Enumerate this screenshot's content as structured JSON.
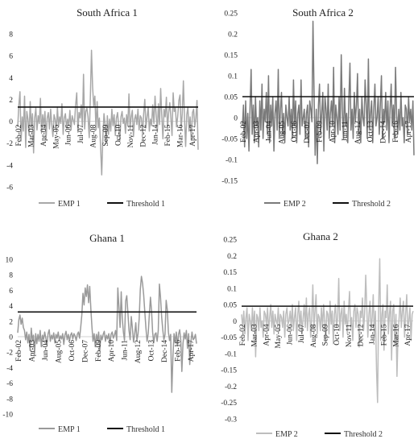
{
  "chart_data": [
    {
      "type": "line",
      "title": "South Africa 1",
      "ylim": [
        -6,
        8
      ],
      "yticks": [
        "8",
        "6",
        "4",
        "2",
        "0",
        "-2",
        "-4",
        "-6"
      ],
      "x_tick_labels": [
        "Feb-02",
        "Mar-03",
        "Apr-04",
        "May-05",
        "Jun-06",
        "Jul-07",
        "Aug-08",
        "Sep-09",
        "Oct-10",
        "Nov-11",
        "Dec-12",
        "Jan-14",
        "Feb-15",
        "Mar-16",
        "Apr-17"
      ],
      "series": [
        {
          "name": "EMP 1",
          "color": "#a8a8a8",
          "values": [
            -0.5,
            1.5,
            2.7,
            -1.8,
            0.4,
            -0.9,
            2.3,
            -2.4,
            0.9,
            0.2,
            -1.3,
            1.8,
            -0.6,
            0.7,
            -2.9,
            0.3,
            1.2,
            -0.8,
            0.5,
            -0.2,
            2.1,
            -1.1,
            0.6,
            -0.4,
            0.9,
            -1.6,
            0.3,
            0.8,
            -0.7,
            1.1,
            -0.3,
            -1.4,
            0.6,
            0.2,
            -0.9,
            1.3,
            -0.5,
            0.4,
            -0.2,
            1.6,
            -1.2,
            0.3,
            0.7,
            -0.6,
            0.2,
            -0.4,
            1.0,
            -0.8,
            0.5,
            0.1,
            -0.3,
            1.4,
            2.6,
            -1.0,
            0.8,
            0.3,
            1.5,
            -0.5,
            4.3,
            -0.7,
            0.9,
            1.2,
            0.4,
            -1.5,
            2.2,
            6.5,
            3.1,
            1.4,
            2.3,
            -0.8,
            1.8,
            -0.6,
            0.3,
            -2.2,
            -4.9,
            -1.5,
            0.7,
            -0.3,
            -2.0,
            0.5,
            -1.2,
            0.2,
            -0.9,
            1.1,
            -0.4,
            0.6,
            -1.3,
            0.3,
            0.8,
            -0.5,
            -1.8,
            0.4,
            0.9,
            -0.2,
            0.3,
            -1.1,
            0.6,
            -0.4,
            2.5,
            -0.7,
            0.4,
            1.0,
            -1.4,
            0.2,
            0.6,
            -0.3,
            1.1,
            -0.8,
            0.5,
            0.3,
            -1.2,
            0.7,
            2.0,
            -0.6,
            0.4,
            1.3,
            -0.9,
            0.2,
            -0.4,
            1.5,
            -0.2,
            2.3,
            0.6,
            -1.0,
            1.6,
            -0.3,
            3.0,
            0.5,
            -1.6,
            1.1,
            0.4,
            2.2,
            -0.7,
            0.8,
            1.7,
            0.3,
            -1.3,
            2.6,
            0.9,
            1.2,
            -0.5,
            0.4,
            1.9,
            2.4,
            -0.8,
            0.7,
            3.7,
            0.2,
            -2.3,
            0.6,
            1.3,
            -0.9,
            0.4,
            -1.7,
            0.8,
            1.1,
            -0.5,
            0.3,
            1.9,
            -2.6
          ]
        },
        {
          "name": "Threshold 1",
          "color": "#111111",
          "values": [
            1.3
          ]
        }
      ]
    },
    {
      "type": "line",
      "title": "South Africa 2",
      "ylim": [
        -0.15,
        0.25
      ],
      "yticks": [
        "0.25",
        "0.2",
        "0.15",
        "0.1",
        "0.05",
        "0",
        "-0.05",
        "-0.1",
        "-0.15"
      ],
      "x_tick_labels": [
        "Feb-02",
        "Apr-03",
        "Jun-04",
        "Aug-05",
        "Oct-06",
        "Dec-07",
        "Feb-09",
        "Apr-10",
        "Jun-11",
        "Aug-12",
        "Oct-13",
        "Dec-14",
        "Feb-16",
        "Apr-17"
      ],
      "series": [
        {
          "name": "EMP 2",
          "color": "#7a7a7a",
          "values": [
            -0.02,
            0.03,
            -0.07,
            0.04,
            -0.05,
            0.01,
            -0.08,
            0.02,
            0.115,
            -0.04,
            0.03,
            -0.06,
            0.05,
            -0.02,
            0.0,
            -0.07,
            0.04,
            -0.03,
            0.08,
            -0.05,
            0.02,
            -0.01,
            0.06,
            -0.04,
            0.1,
            -0.06,
            0.03,
            -0.02,
            0.05,
            -0.08,
            0.01,
            0.04,
            -0.03,
            0.115,
            -0.05,
            0.02,
            0.06,
            -0.04,
            0.01,
            -0.06,
            0.03,
            0.0,
            -0.02,
            0.05,
            -0.03,
            0.02,
            -0.05,
            0.09,
            -0.02,
            0.04,
            -0.06,
            0.01,
            0.03,
            -0.04,
            0.09,
            -0.02,
            0.0,
            0.02,
            -0.05,
            0.01,
            0.03,
            -0.07,
            0.04,
            0.02,
            -0.01,
            0.23,
            0.05,
            -0.09,
            0.02,
            -0.11,
            0.03,
            0.08,
            -0.04,
            0.01,
            0.06,
            -0.08,
            0.05,
            0.02,
            -0.03,
            0.08,
            -0.05,
            0.01,
            0.04,
            -0.02,
            0.12,
            -0.06,
            0.03,
            0.0,
            -0.04,
            0.05,
            -0.03,
            0.15,
            0.02,
            -0.05,
            0.07,
            -0.02,
            0.01,
            -0.06,
            0.04,
            0.13,
            -0.03,
            0.02,
            -0.05,
            0.06,
            -0.01,
            0.03,
            0.105,
            -0.04,
            0.02,
            -0.06,
            0.05,
            0.0,
            -0.02,
            0.09,
            0.03,
            -0.05,
            0.14,
            -0.03,
            0.01,
            0.04,
            -0.06,
            0.02,
            0.08,
            -0.02,
            0.0,
            0.05,
            -0.04,
            0.03,
            0.1,
            -0.05,
            0.02,
            -0.01,
            0.06,
            -0.03,
            0.04,
            -0.06,
            0.02,
            0.08,
            -0.02,
            0.03,
            -0.05,
            0.12,
            0.01,
            -0.04,
            0.02,
            -0.03,
            0.06,
            -0.02,
            0.0,
            -0.06,
            0.03,
            0.02,
            -0.04,
            0.05,
            -0.01,
            0.02,
            -0.03,
            0.04,
            -0.09
          ]
        },
        {
          "name": "Threshold 2",
          "color": "#111111",
          "values": [
            0.05
          ]
        }
      ]
    },
    {
      "type": "line",
      "title": "Ghana 1",
      "ylim": [
        -10,
        10
      ],
      "yticks": [
        "10",
        "8",
        "6",
        "4",
        "2",
        "0",
        "-2",
        "-4",
        "-6",
        "-8",
        "-10"
      ],
      "x_tick_labels": [
        "Feb-02",
        "Apr-03",
        "Jun-04",
        "Aug-05",
        "Oct-06",
        "Dec-07",
        "Feb-09",
        "Apr-10",
        "Jun-11",
        "Aug-12",
        "Oct-13",
        "Dec-14",
        "Feb-16",
        "Apr-17"
      ],
      "series": [
        {
          "name": "EMP 1",
          "color": "#9a9a9a",
          "values": [
            0.5,
            2.2,
            2.8,
            1.6,
            2.4,
            1.2,
            0.8,
            -0.4,
            0.6,
            -0.8,
            0.3,
            -1.8,
            1.1,
            -0.5,
            0.2,
            -2.2,
            0.4,
            -0.9,
            0.3,
            -0.6,
            0.8,
            -1.3,
            0.2,
            -0.4,
            0.6,
            -0.2,
            -1.1,
            0.4,
            0.9,
            -0.6,
            0.2,
            -0.3,
            0.5,
            -0.8,
            0.3,
            -0.2,
            0.6,
            -0.5,
            0.1,
            -0.3,
            0.4,
            -1.0,
            0.2,
            0.7,
            -0.4,
            0.3,
            -0.6,
            0.2,
            0.5,
            -0.3,
            0.4,
            0.1,
            -0.5,
            0.3,
            0.6,
            -0.2,
            1.2,
            2.8,
            5.6,
            4.1,
            6.3,
            5.2,
            6.7,
            4.4,
            6.5,
            3.6,
            1.2,
            -0.6,
            0.4,
            -1.3,
            0.3,
            -0.5,
            0.6,
            -1.8,
            0.2,
            -0.4,
            0.3,
            0.7,
            -0.6,
            0.2,
            -0.3,
            0.4,
            -1.0,
            0.3,
            0.6,
            -0.2,
            0.2,
            0.8,
            -0.5,
            6.3,
            3.8,
            1.2,
            5.8,
            2.4,
            0.6,
            -0.5,
            4.6,
            5.3,
            3.1,
            0.8,
            -0.4,
            2.6,
            1.1,
            -0.7,
            0.3,
            1.8,
            -0.5,
            0.4,
            2.3,
            6.1,
            7.8,
            6.9,
            5.4,
            3.2,
            1.1,
            -0.6,
            0.4,
            2.8,
            5.1,
            3.3,
            0.6,
            -0.8,
            0.3,
            0.5,
            -0.6,
            0.8,
            6.8,
            5.1,
            2.6,
            0.9,
            -0.4,
            0.3,
            4.7,
            3.5,
            0.6,
            -0.5,
            0.3,
            -7.2,
            -2.6,
            0.4,
            -0.8,
            0.6,
            -1.2,
            0.3,
            0.9,
            -0.5,
            -4.5,
            -0.9,
            0.5,
            -0.3,
            0.8,
            -1.5,
            0.4,
            -3.6,
            -0.7,
            0.6,
            -0.4,
            -0.2,
            0.3,
            -0.9
          ]
        },
        {
          "name": "Threshold 1",
          "color": "#111111",
          "values": [
            3.2
          ]
        }
      ]
    },
    {
      "type": "line",
      "title": "Ghana 2",
      "ylim": [
        -0.3,
        0.25
      ],
      "yticks": [
        "0.25",
        "0.2",
        "0.15",
        "0.1",
        "0.05",
        "0",
        "-0.05",
        "-0.1",
        "-0.15",
        "-0.2",
        "-0.25",
        "-0.3"
      ],
      "x_tick_labels": [
        "Feb-02",
        "Mar-03",
        "Apr-04",
        "May-05",
        "Jun-06",
        "Jul-07",
        "Aug-08",
        "Sep-09",
        "Oct-10",
        "Nov-11",
        "Dec-12",
        "Jan-14",
        "Feb-15",
        "Mar-16",
        "Apr-17"
      ],
      "series": [
        {
          "name": "EMP 2",
          "color": "#bdbdbd",
          "values": [
            0.02,
            -0.02,
            0.03,
            -0.04,
            0.01,
            0.04,
            -0.06,
            0.02,
            0.0,
            -0.03,
            0.04,
            -0.02,
            0.03,
            -0.11,
            0.02,
            0.01,
            -0.03,
            0.04,
            -0.02,
            0.0,
            -0.05,
            0.03,
            0.02,
            -0.01,
            0.04,
            -0.03,
            0.01,
            0.05,
            -0.02,
            0.03,
            -0.04,
            0.02,
            0.0,
            -0.01,
            0.04,
            -0.03,
            0.02,
            0.01,
            -0.02,
            0.03,
            -0.05,
            0.02,
            0.04,
            -0.01,
            0.0,
            0.03,
            -0.02,
            0.05,
            -0.03,
            0.01,
            0.04,
            -0.06,
            0.02,
            0.06,
            -0.02,
            0.03,
            -0.04,
            0.01,
            0.05,
            -0.02,
            0.07,
            -0.03,
            0.02,
            0.04,
            -0.05,
            0.01,
            0.11,
            -0.02,
            0.03,
            0.08,
            -0.04,
            0.02,
            0.01,
            -0.03,
            0.04,
            -0.02,
            0.05,
            0.0,
            -0.06,
            0.03,
            0.02,
            -0.04,
            0.06,
            -0.01,
            0.03,
            -0.07,
            0.02,
            0.05,
            -0.02,
            0.01,
            0.13,
            -0.03,
            0.02,
            0.04,
            -0.05,
            0.06,
            -0.01,
            0.02,
            -0.04,
            0.03,
            0.09,
            -0.02,
            0.01,
            -0.06,
            0.03,
            0.05,
            -0.02,
            0.04,
            0.02,
            -0.08,
            0.03,
            0.01,
            0.07,
            -0.03,
            0.02,
            0.14,
            0.04,
            -0.05,
            0.02,
            0.06,
            -0.03,
            0.01,
            0.08,
            -0.05,
            0.03,
            -0.15,
            -0.25,
            0.04,
            0.19,
            -0.06,
            0.02,
            0.05,
            -0.09,
            0.03,
            0.01,
            0.11,
            -0.04,
            0.02,
            0.06,
            -0.12,
            0.03,
            0.05,
            -0.07,
            0.02,
            -0.17,
            -0.04,
            0.01,
            0.07,
            -0.02,
            0.03,
            0.06,
            -0.05,
            0.02,
            0.08,
            -0.03,
            0.0,
            0.04,
            -0.06,
            0.02,
            0.03
          ]
        },
        {
          "name": "Threshold 2",
          "color": "#111111",
          "values": [
            0.045
          ]
        }
      ]
    }
  ]
}
